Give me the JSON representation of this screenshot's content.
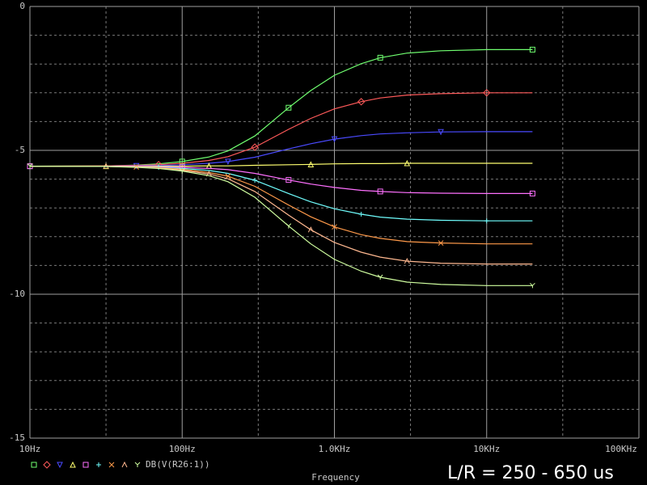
{
  "chart_data": {
    "type": "line",
    "x_label": "Frequency",
    "legend_label": "DB(V(R26:1))",
    "annotation": "L/R = 250 - 650 us",
    "xscale": "log",
    "xlim": [
      10,
      100000
    ],
    "ylim": [
      -15,
      0
    ],
    "xticks": [
      {
        "value": 10,
        "label": "10Hz"
      },
      {
        "value": 100,
        "label": "100Hz"
      },
      {
        "value": 1000,
        "label": "1.0KHz"
      },
      {
        "value": 10000,
        "label": "10KHz"
      },
      {
        "value": 100000,
        "label": "100KHz"
      }
    ],
    "yticks": [
      0,
      -5,
      -10,
      -15
    ],
    "x_minor_gridlines": [
      31.6,
      316,
      3160,
      31600
    ],
    "y_minor_gridlines": [
      -1,
      -2,
      -3,
      -4,
      -6,
      -7,
      -8,
      -9,
      -11,
      -12,
      -13,
      -14
    ],
    "grid": true,
    "x": [
      10,
      31.6,
      50,
      70,
      100,
      150,
      200,
      300,
      500,
      700,
      1000,
      1500,
      2000,
      3000,
      5000,
      10000,
      20000
    ],
    "series": [
      {
        "color": "#70ff70",
        "marker": "square",
        "values": [
          -5.55,
          -5.54,
          -5.51,
          -5.47,
          -5.39,
          -5.23,
          -5.02,
          -4.5,
          -3.52,
          -2.92,
          -2.39,
          -1.99,
          -1.78,
          -1.62,
          -1.54,
          -1.5,
          -1.5
        ]
      },
      {
        "color": "#ff5a5a",
        "marker": "diamond",
        "values": [
          -5.55,
          -5.54,
          -5.52,
          -5.5,
          -5.45,
          -5.35,
          -5.22,
          -4.89,
          -4.27,
          -3.89,
          -3.56,
          -3.31,
          -3.18,
          -3.08,
          -3.03,
          -3.0,
          -3.0
        ]
      },
      {
        "color": "#4a4aff",
        "marker": "triangle-down",
        "values": [
          -5.55,
          -5.55,
          -5.54,
          -5.53,
          -5.5,
          -5.45,
          -5.39,
          -5.24,
          -4.95,
          -4.77,
          -4.61,
          -4.49,
          -4.43,
          -4.39,
          -4.36,
          -4.35,
          -4.35
        ]
      },
      {
        "color": "#ffff70",
        "marker": "triangle-up",
        "values": [
          -5.55,
          -5.55,
          -5.55,
          -5.55,
          -5.55,
          -5.54,
          -5.54,
          -5.52,
          -5.5,
          -5.49,
          -5.47,
          -5.46,
          -5.46,
          -5.45,
          -5.45,
          -5.45,
          -5.45
        ]
      },
      {
        "color": "#ff70ff",
        "marker": "square",
        "values": [
          -5.55,
          -5.55,
          -5.56,
          -5.57,
          -5.59,
          -5.63,
          -5.67,
          -5.8,
          -6.03,
          -6.17,
          -6.29,
          -6.39,
          -6.43,
          -6.47,
          -6.49,
          -6.5,
          -6.5
        ]
      },
      {
        "color": "#70ffff",
        "marker": "plus",
        "values": [
          -5.55,
          -5.56,
          -5.57,
          -5.59,
          -5.63,
          -5.7,
          -5.8,
          -6.04,
          -6.5,
          -6.79,
          -7.03,
          -7.22,
          -7.32,
          -7.39,
          -7.43,
          -7.45,
          -7.45
        ]
      },
      {
        "color": "#ff9a4a",
        "marker": "cross",
        "values": [
          -5.55,
          -5.56,
          -5.58,
          -5.6,
          -5.66,
          -5.77,
          -5.9,
          -6.25,
          -6.9,
          -7.31,
          -7.66,
          -7.93,
          -8.06,
          -8.17,
          -8.22,
          -8.25,
          -8.25
        ]
      },
      {
        "color": "#ffb890",
        "marker": "lambda",
        "values": [
          -5.55,
          -5.56,
          -5.58,
          -5.62,
          -5.69,
          -5.82,
          -5.99,
          -6.43,
          -7.25,
          -7.76,
          -8.2,
          -8.54,
          -8.71,
          -8.85,
          -8.92,
          -8.95,
          -8.95
        ]
      },
      {
        "color": "#d0ffa0",
        "marker": "y",
        "values": [
          -5.55,
          -5.56,
          -5.59,
          -5.63,
          -5.72,
          -5.88,
          -6.09,
          -6.63,
          -7.63,
          -8.25,
          -8.79,
          -9.2,
          -9.41,
          -9.58,
          -9.66,
          -9.7,
          -9.7
        ]
      }
    ]
  }
}
